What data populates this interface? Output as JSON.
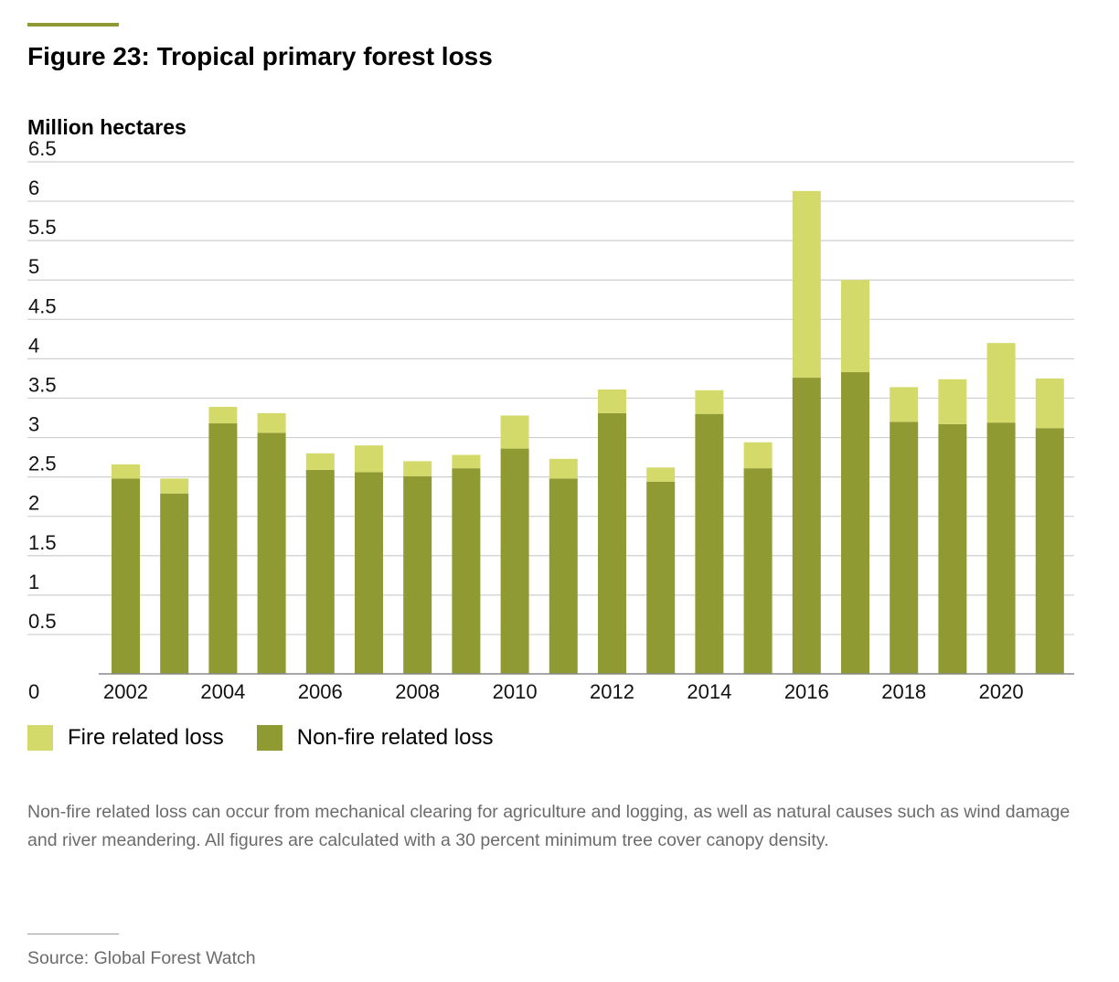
{
  "figure": {
    "title": "Figure 23: Tropical primary forest loss",
    "y_unit": "Million hectares",
    "note": "Non-fire related loss can occur from mechanical clearing for agriculture and logging, as well as natural causes such as wind damage and river meandering. All figures are calculated with a 30 percent minimum tree cover canopy density.",
    "source": "Source: Global Forest Watch"
  },
  "legend": {
    "fire_label": "Fire related loss",
    "nonfire_label": "Non-fire related loss"
  },
  "colors": {
    "fire": "#d3da6a",
    "nonfire": "#8f9a33",
    "grid": "#cfcfcf",
    "axis": "#888888"
  },
  "chart_data": {
    "type": "bar",
    "stacked": true,
    "title": "Figure 23: Tropical primary forest loss",
    "ylabel": "Million hectares",
    "xlabel": "",
    "ylim": [
      0,
      6.5
    ],
    "yticks": [
      0,
      0.5,
      1,
      1.5,
      2,
      2.5,
      3,
      3.5,
      4,
      4.5,
      5,
      5.5,
      6,
      6.5
    ],
    "ytick_labels": [
      "0",
      "0.5",
      "1",
      "1.5",
      "2",
      "2.5",
      "3",
      "3.5",
      "4",
      "4.5",
      "5",
      "5.5",
      "6",
      "6.5"
    ],
    "grid": true,
    "legend_position": "bottom-left",
    "categories": [
      "2002",
      "2003",
      "2004",
      "2005",
      "2006",
      "2007",
      "2008",
      "2009",
      "2010",
      "2011",
      "2012",
      "2013",
      "2014",
      "2015",
      "2016",
      "2017",
      "2018",
      "2019",
      "2020",
      "2021"
    ],
    "x_tick_labels": [
      "2002",
      "2004",
      "2006",
      "2008",
      "2010",
      "2012",
      "2014",
      "2016",
      "2018",
      "2020"
    ],
    "series": [
      {
        "name": "Non-fire related loss",
        "values": [
          2.48,
          2.29,
          3.18,
          3.06,
          2.59,
          2.56,
          2.51,
          2.61,
          2.86,
          2.48,
          3.31,
          2.44,
          3.3,
          2.61,
          3.76,
          3.83,
          3.2,
          3.17,
          3.19,
          3.12
        ]
      },
      {
        "name": "Fire related loss",
        "values": [
          0.18,
          0.19,
          0.21,
          0.25,
          0.21,
          0.34,
          0.19,
          0.17,
          0.42,
          0.25,
          0.3,
          0.18,
          0.3,
          0.33,
          2.37,
          1.17,
          0.44,
          0.57,
          1.01,
          0.63
        ]
      }
    ]
  }
}
